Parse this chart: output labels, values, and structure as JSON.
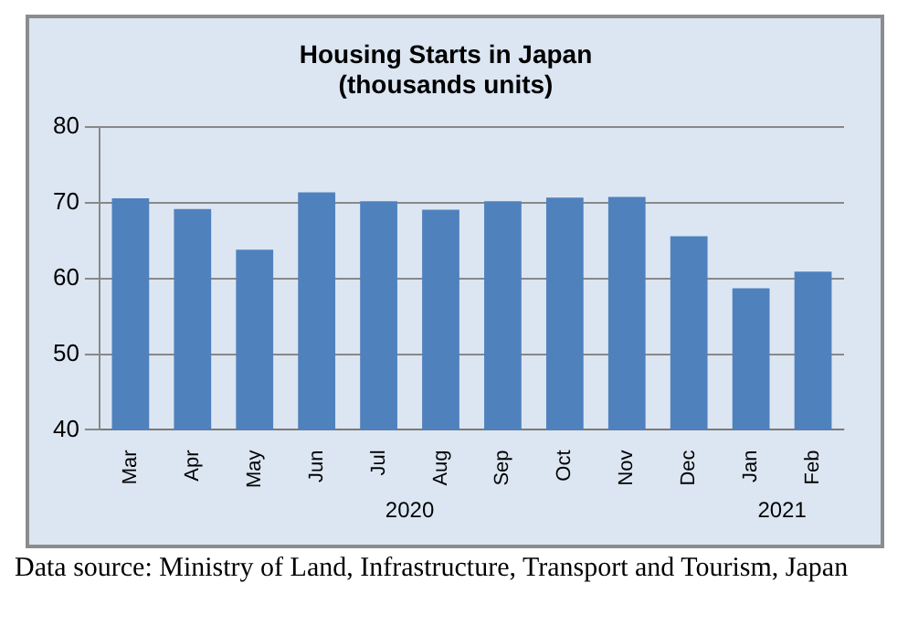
{
  "chart_data": {
    "type": "bar",
    "title": "Housing Starts in Japan",
    "subtitle": "(thousands units)",
    "categories": [
      "Mar",
      "Apr",
      "May",
      "Jun",
      "Jul",
      "Aug",
      "Sep",
      "Oct",
      "Nov",
      "Dec",
      "Jan",
      "Feb"
    ],
    "values": [
      70.6,
      69.2,
      63.8,
      71.4,
      70.2,
      69.1,
      70.2,
      70.7,
      70.8,
      65.6,
      58.7,
      60.9
    ],
    "color": "#4f81bd",
    "ylim": [
      40,
      80
    ],
    "yticks": [
      40,
      50,
      60,
      70,
      80
    ],
    "grid": "y",
    "legend": false,
    "annotations": [
      "2020",
      "2021",
      "Data source: Ministry of Land, Infrastructure, Transport and Tourism, Japan"
    ]
  }
}
